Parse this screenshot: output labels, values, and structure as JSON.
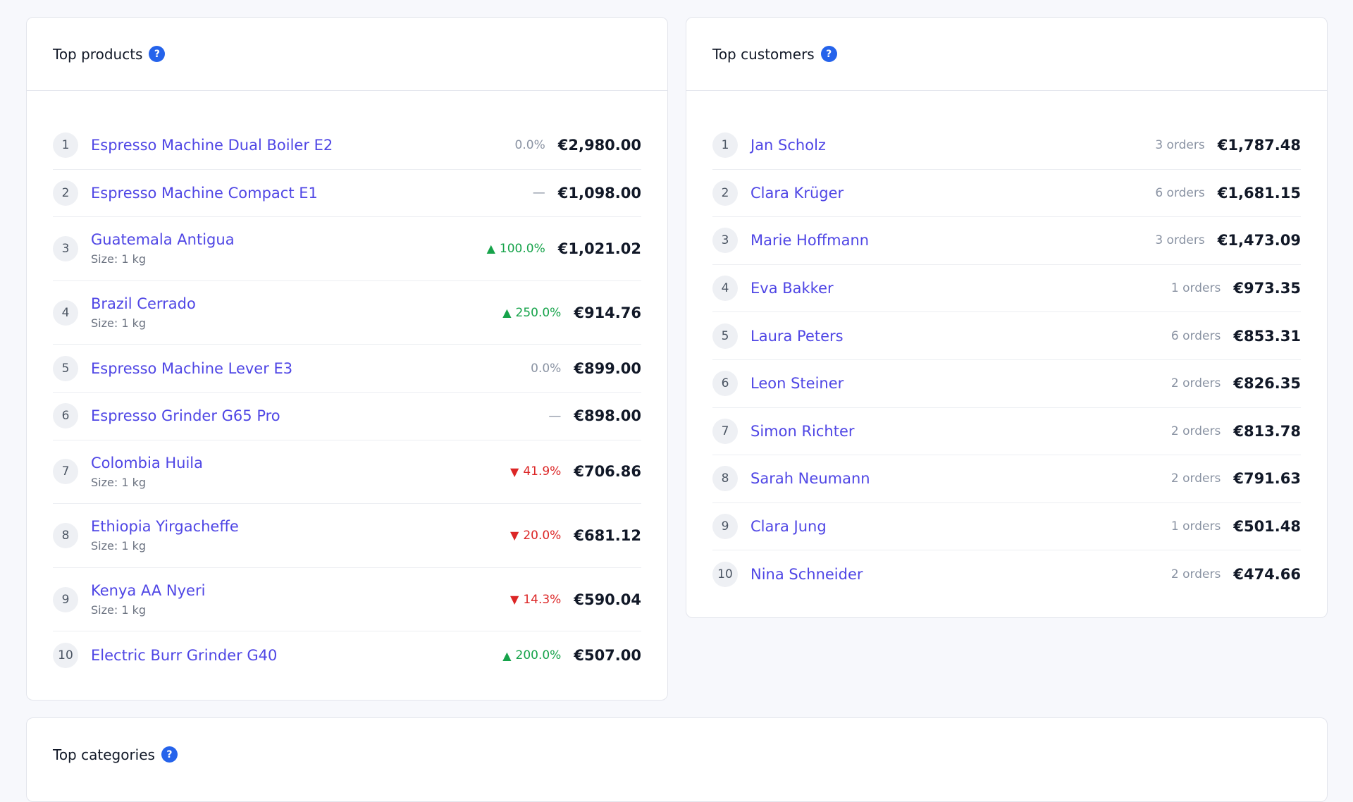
{
  "products": {
    "title": "Top products",
    "items": [
      {
        "rank": "1",
        "name": "Espresso Machine Dual Boiler E2",
        "sub": "",
        "change": "0.0%",
        "trend": "neutral",
        "amount": "€2,980.00"
      },
      {
        "rank": "2",
        "name": "Espresso Machine Compact E1",
        "sub": "",
        "change": "—",
        "trend": "none",
        "amount": "€1,098.00"
      },
      {
        "rank": "3",
        "name": "Guatemala Antigua",
        "sub": "Size: 1 kg",
        "change": "100.0%",
        "trend": "up",
        "amount": "€1,021.02"
      },
      {
        "rank": "4",
        "name": "Brazil Cerrado",
        "sub": "Size: 1 kg",
        "change": "250.0%",
        "trend": "up",
        "amount": "€914.76"
      },
      {
        "rank": "5",
        "name": "Espresso Machine Lever E3",
        "sub": "",
        "change": "0.0%",
        "trend": "neutral",
        "amount": "€899.00"
      },
      {
        "rank": "6",
        "name": "Espresso Grinder G65 Pro",
        "sub": "",
        "change": "—",
        "trend": "none",
        "amount": "€898.00"
      },
      {
        "rank": "7",
        "name": "Colombia Huila",
        "sub": "Size: 1 kg",
        "change": "41.9%",
        "trend": "down",
        "amount": "€706.86"
      },
      {
        "rank": "8",
        "name": "Ethiopia Yirgacheffe",
        "sub": "Size: 1 kg",
        "change": "20.0%",
        "trend": "down",
        "amount": "€681.12"
      },
      {
        "rank": "9",
        "name": "Kenya AA Nyeri",
        "sub": "Size: 1 kg",
        "change": "14.3%",
        "trend": "down",
        "amount": "€590.04"
      },
      {
        "rank": "10",
        "name": "Electric Burr Grinder G40",
        "sub": "",
        "change": "200.0%",
        "trend": "up",
        "amount": "€507.00"
      }
    ]
  },
  "customers": {
    "title": "Top customers",
    "items": [
      {
        "rank": "1",
        "name": "Jan Scholz",
        "orders": "3 orders",
        "amount": "€1,787.48"
      },
      {
        "rank": "2",
        "name": "Clara Krüger",
        "orders": "6 orders",
        "amount": "€1,681.15"
      },
      {
        "rank": "3",
        "name": "Marie Hoffmann",
        "orders": "3 orders",
        "amount": "€1,473.09"
      },
      {
        "rank": "4",
        "name": "Eva Bakker",
        "orders": "1 orders",
        "amount": "€973.35"
      },
      {
        "rank": "5",
        "name": "Laura Peters",
        "orders": "6 orders",
        "amount": "€853.31"
      },
      {
        "rank": "6",
        "name": "Leon Steiner",
        "orders": "2 orders",
        "amount": "€826.35"
      },
      {
        "rank": "7",
        "name": "Simon Richter",
        "orders": "2 orders",
        "amount": "€813.78"
      },
      {
        "rank": "8",
        "name": "Sarah Neumann",
        "orders": "2 orders",
        "amount": "€791.63"
      },
      {
        "rank": "9",
        "name": "Clara Jung",
        "orders": "1 orders",
        "amount": "€501.48"
      },
      {
        "rank": "10",
        "name": "Nina Schneider",
        "orders": "2 orders",
        "amount": "€474.66"
      }
    ]
  },
  "categories": {
    "title": "Top categories"
  },
  "help_icon_glyph": "?",
  "colors": {
    "link": "#4f46e5",
    "up": "#16a34a",
    "down": "#dc2626",
    "help": "#2563eb"
  }
}
